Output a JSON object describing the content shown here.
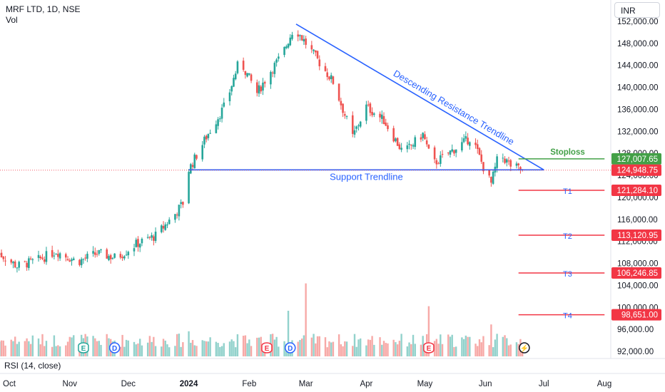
{
  "header": {
    "symbol_title": "MRF LTD, 1D, NSE",
    "volume_label": "Vol"
  },
  "currency_button": "INR",
  "rsi_label": "RSI (14, close)",
  "colors": {
    "up": "#26a69a",
    "down": "#ef5350",
    "trend": "#2962ff",
    "stoploss": "#43a047",
    "target": "#f23645"
  },
  "chart_data": {
    "type": "candlestick",
    "y_range": [
      91000,
      153500
    ],
    "y_ticks": [
      92000,
      96000,
      100000,
      104000,
      108000,
      112000,
      116000,
      120000,
      124000,
      128000,
      132000,
      136000,
      140000,
      144000,
      148000,
      152000
    ],
    "y_tick_labels": [
      "92,000.00",
      "96,000.00",
      "100,000.00",
      "104,000.00",
      "108,000.00",
      "112,000.00",
      "116,000.00",
      "120,000.00",
      "124,000.00",
      "128,000.00",
      "132,000.00",
      "136,000.00",
      "140,000.00",
      "144,000.00",
      "148,000.00",
      "152,000.00"
    ],
    "x_axis": {
      "start": "2023-09-25",
      "end": "2024-08-10",
      "ticks": [
        {
          "date": "2023-10-01",
          "label": "Oct"
        },
        {
          "date": "2023-11-01",
          "label": "Nov"
        },
        {
          "date": "2023-12-01",
          "label": "Dec"
        },
        {
          "date": "2024-01-01",
          "label": "2024"
        },
        {
          "date": "2024-02-01",
          "label": "Feb"
        },
        {
          "date": "2024-03-01",
          "label": "Mar"
        },
        {
          "date": "2024-04-01",
          "label": "Apr"
        },
        {
          "date": "2024-05-01",
          "label": "May"
        },
        {
          "date": "2024-06-01",
          "label": "Jun"
        },
        {
          "date": "2024-07-01",
          "label": "Jul"
        },
        {
          "date": "2024-08-01",
          "label": "Aug"
        }
      ]
    },
    "price_path": [
      [
        "2023-09-25",
        110000
      ],
      [
        "2023-10-05",
        107500
      ],
      [
        "2023-10-15",
        108500
      ],
      [
        "2023-10-25",
        110200
      ],
      [
        "2023-11-05",
        108300
      ],
      [
        "2023-11-15",
        109800
      ],
      [
        "2023-11-25",
        109000
      ],
      [
        "2023-12-05",
        111500
      ],
      [
        "2023-12-15",
        113000
      ],
      [
        "2023-12-25",
        117000
      ],
      [
        "2023-12-31",
        120000
      ],
      [
        "2024-01-01",
        125000
      ],
      [
        "2024-01-10",
        131000
      ],
      [
        "2024-01-20",
        137000
      ],
      [
        "2024-01-27",
        145000
      ],
      [
        "2024-02-05",
        139000
      ],
      [
        "2024-02-12",
        143000
      ],
      [
        "2024-02-18",
        146000
      ],
      [
        "2024-02-24",
        151000
      ],
      [
        "2024-03-05",
        146000
      ],
      [
        "2024-03-15",
        141000
      ],
      [
        "2024-03-25",
        131000
      ],
      [
        "2024-04-01",
        136500
      ],
      [
        "2024-04-10",
        134000
      ],
      [
        "2024-04-20",
        128000
      ],
      [
        "2024-04-30",
        131500
      ],
      [
        "2024-05-05",
        126000
      ],
      [
        "2024-05-15",
        128500
      ],
      [
        "2024-05-25",
        131000
      ],
      [
        "2024-05-31",
        125500
      ],
      [
        "2024-06-04",
        122500
      ],
      [
        "2024-06-08",
        128000
      ],
      [
        "2024-06-14",
        125800
      ],
      [
        "2024-06-20",
        124950
      ]
    ],
    "volume_max": 20,
    "volume_spikes": [
      {
        "date": "2023-11-05",
        "value": 6
      },
      {
        "date": "2024-01-01",
        "value": 5.5
      },
      {
        "date": "2024-02-04",
        "value": 7
      },
      {
        "date": "2024-02-21",
        "value": 10
      },
      {
        "date": "2024-03-01",
        "value": 16
      },
      {
        "date": "2024-03-02",
        "value": 9
      },
      {
        "date": "2024-05-03",
        "value": 11
      },
      {
        "date": "2024-06-04",
        "value": 7
      }
    ],
    "event_markers": [
      {
        "date": "2023-11-08",
        "letter": "E",
        "kind": "earnings"
      },
      {
        "date": "2023-11-24",
        "letter": "D",
        "kind": "dividend"
      },
      {
        "date": "2024-02-10",
        "letter": "E",
        "kind": "earnings"
      },
      {
        "date": "2024-02-22",
        "letter": "D",
        "kind": "dividend"
      },
      {
        "date": "2024-05-03",
        "letter": "E",
        "kind": "earnings"
      },
      {
        "date": "2024-06-21",
        "letter": "⚡",
        "kind": "flash"
      }
    ],
    "trendlines": [
      {
        "label": "Descending Resistance Trendline",
        "from": [
          "2024-02-25",
          151500
        ],
        "to": [
          "2024-07-01",
          125000
        ]
      },
      {
        "label": "Support Trendline",
        "from": [
          "2024-01-01",
          125000
        ],
        "to": [
          "2024-07-01",
          125000
        ]
      }
    ],
    "levels": [
      {
        "label": "Stoploss",
        "value": 127007.65,
        "price_label": "127,007.65",
        "color": "#43a047",
        "from": "2024-06-18",
        "to": "2024-07-31"
      },
      {
        "label": "",
        "value": 124948.75,
        "price_label": "124,948.75",
        "color": "#f23645",
        "kind": "last-price"
      },
      {
        "label": "T1",
        "value": 121284.1,
        "price_label": "121,284.10",
        "color": "#f23645",
        "from": "2024-06-18",
        "to": "2024-07-31"
      },
      {
        "label": "T2",
        "value": 113120.95,
        "price_label": "113,120.95",
        "color": "#f23645",
        "from": "2024-06-18",
        "to": "2024-07-31"
      },
      {
        "label": "T3",
        "value": 106246.85,
        "price_label": "106,246.85",
        "color": "#f23645",
        "from": "2024-06-18",
        "to": "2024-07-31"
      },
      {
        "label": "T4",
        "value": 98651.0,
        "price_label": "98,651.00",
        "color": "#f23645",
        "from": "2024-06-18",
        "to": "2024-07-31"
      }
    ]
  }
}
